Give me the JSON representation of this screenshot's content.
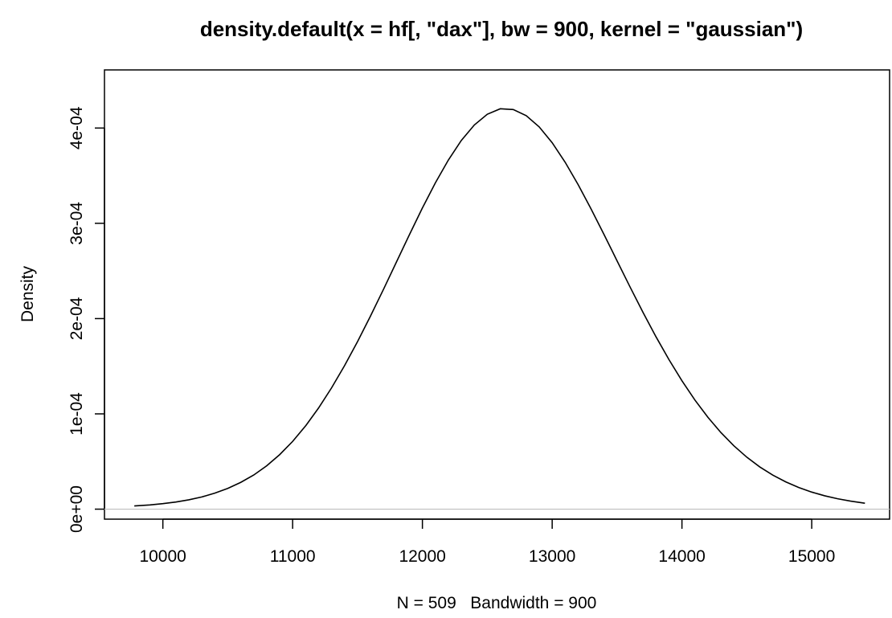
{
  "chart_data": {
    "type": "line",
    "title": "density.default(x = hf[, \"dax\"], bw = 900, kernel = \"gaussian\")",
    "xlabel": "N = 509   Bandwidth = 900",
    "ylabel": "Density",
    "xlim": [
      9550,
      15600
    ],
    "ylim": [
      -1.05e-05,
      0.000461
    ],
    "x_ticks": [
      {
        "value": 10000,
        "label": "10000"
      },
      {
        "value": 11000,
        "label": "11000"
      },
      {
        "value": 12000,
        "label": "12000"
      },
      {
        "value": 13000,
        "label": "13000"
      },
      {
        "value": 14000,
        "label": "14000"
      },
      {
        "value": 15000,
        "label": "15000"
      }
    ],
    "y_ticks": [
      {
        "value": 0,
        "label": "0e+00"
      },
      {
        "value": 0.0001,
        "label": "1e-04"
      },
      {
        "value": 0.0002,
        "label": "2e-04"
      },
      {
        "value": 0.0003,
        "label": "3e-04"
      },
      {
        "value": 0.0004,
        "label": "4e-04"
      }
    ],
    "baseline": {
      "y": 0,
      "color": "#bebebe"
    },
    "grid": false,
    "legend": "none",
    "series": [
      {
        "color": "#000000",
        "x": [
          9780,
          9900,
          10000,
          10100,
          10200,
          10300,
          10400,
          10500,
          10600,
          10700,
          10800,
          10900,
          11000,
          11100,
          11200,
          11300,
          11400,
          11500,
          11600,
          11700,
          11800,
          11900,
          12000,
          12100,
          12200,
          12300,
          12400,
          12500,
          12600,
          12700,
          12800,
          12900,
          13000,
          13100,
          13200,
          13300,
          13400,
          13500,
          13600,
          13700,
          13800,
          13900,
          14000,
          14100,
          14200,
          14300,
          14400,
          14500,
          14600,
          14700,
          14800,
          14900,
          15000,
          15100,
          15200,
          15300,
          15410
        ],
        "y": [
          3.4e-06,
          4.4e-06,
          5.8e-06,
          7.5e-06,
          9.8e-06,
          1.28e-05,
          1.68e-05,
          2.18e-05,
          2.81e-05,
          3.58e-05,
          4.55e-05,
          5.72e-05,
          7.11e-05,
          8.74e-05,
          0.0001062,
          0.0001273,
          0.0001506,
          0.0001758,
          0.0002027,
          0.0002307,
          0.0002594,
          0.0002881,
          0.0003161,
          0.0003425,
          0.0003664,
          0.000387,
          0.0004032,
          0.0004145,
          0.0004202,
          0.0004194,
          0.000413,
          0.0004012,
          0.0003846,
          0.0003641,
          0.0003406,
          0.000315,
          0.0002881,
          0.0002606,
          0.0002332,
          0.0002065,
          0.0001809,
          0.0001569,
          0.0001347,
          0.0001145,
          9.64e-05,
          8.04e-05,
          6.65e-05,
          5.45e-05,
          4.43e-05,
          3.57e-05,
          2.86e-05,
          2.27e-05,
          1.79e-05,
          1.4e-05,
          1.09e-05,
          8.4e-06,
          6.2e-06
        ]
      }
    ]
  }
}
